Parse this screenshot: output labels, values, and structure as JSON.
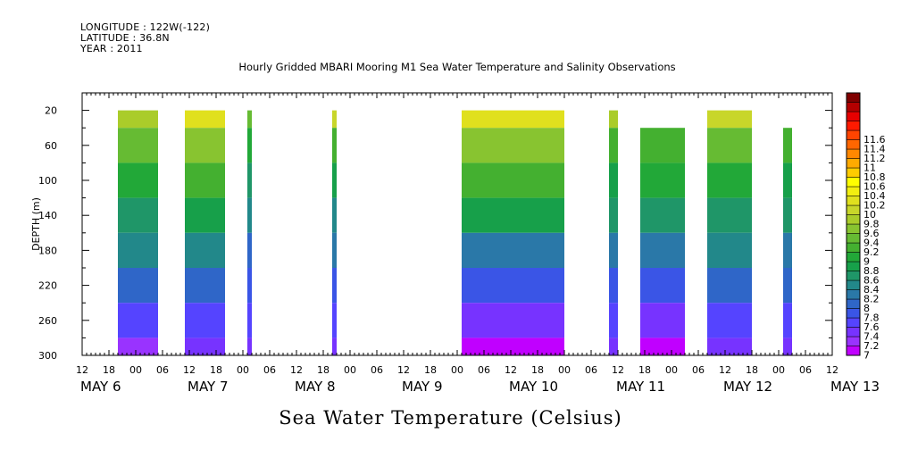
{
  "header": {
    "longitude": "LONGITUDE : 122W(-122)",
    "latitude": "LATITUDE : 36.8N",
    "year": "YEAR : 2011"
  },
  "colors": {
    "levels": [
      "#c000ff",
      "#9933ff",
      "#7733ff",
      "#5544ff",
      "#3a55e6",
      "#2f66c8",
      "#2a78a8",
      "#22888a",
      "#1f9668",
      "#17a04a",
      "#22a838",
      "#44b030",
      "#66bb33",
      "#88c430",
      "#aacc2a",
      "#c8d62a",
      "#e0e01e",
      "#f2ee10",
      "#ffff00",
      "#ffcc00",
      "#ffaa00",
      "#ff8800",
      "#ff6600",
      "#ff4400",
      "#ff1a00",
      "#e60000",
      "#b30000",
      "#800000"
    ]
  },
  "chart_data": {
    "type": "heatmap",
    "title": "Hourly Gridded MBARI Mooring M1 Sea Water Temperature and Salinity Observations",
    "xlabel": "",
    "ylabel": "DEPTH (m)",
    "bottom_title": "Sea Water Temperature (Celsius)",
    "x_unit": "hours from May 5 12:00, 2011",
    "xlim": [
      0,
      168
    ],
    "ylim": [
      300,
      0
    ],
    "y_ticks": [
      20,
      60,
      100,
      140,
      180,
      220,
      260,
      300
    ],
    "hour_tick_labels": [
      "12",
      "18",
      "00",
      "06",
      "12",
      "18",
      "00",
      "06",
      "12",
      "18",
      "00",
      "06",
      "12",
      "18",
      "00",
      "06",
      "12",
      "18",
      "00",
      "06",
      "12",
      "18",
      "00",
      "06",
      "12",
      "18",
      "00",
      "06",
      "12",
      "18",
      "00",
      "06",
      "12",
      "18",
      "00",
      "06",
      "12"
    ],
    "day_labels": [
      {
        "label": "MAY  6",
        "hour": 12
      },
      {
        "label": "MAY  7",
        "hour": 36
      },
      {
        "label": "MAY  8",
        "hour": 60
      },
      {
        "label": "MAY  9",
        "hour": 84
      },
      {
        "label": "MAY 10",
        "hour": 108
      },
      {
        "label": "MAY 11",
        "hour": 132
      },
      {
        "label": "MAY 12",
        "hour": 156
      },
      {
        "label": "MAY 13",
        "hour": 180
      }
    ],
    "colorbar": {
      "min": 7.0,
      "step": 0.2,
      "labels": [
        "7",
        "7.2",
        "7.4",
        "7.6",
        "7.8",
        "8",
        "8.2",
        "8.4",
        "8.6",
        "8.8",
        "9",
        "9.2",
        "9.4",
        "9.6",
        "9.8",
        "10",
        "10.2",
        "10.4",
        "10.6",
        "10.8",
        "11",
        "11.2",
        "11.4",
        "11.6"
      ]
    },
    "segments": [
      {
        "start": 8,
        "end": 17,
        "top": 20,
        "temps": [
          9.8,
          9.5,
          9.0,
          8.7,
          8.4,
          8.0,
          7.6,
          7.3
        ]
      },
      {
        "start": 23,
        "end": 32,
        "top": 20,
        "temps": [
          10.2,
          9.6,
          9.2,
          8.8,
          8.4,
          8.0,
          7.7,
          7.5
        ]
      },
      {
        "start": 37,
        "end": 38,
        "top": 20,
        "temps": [
          9.4,
          9.0,
          8.6,
          8.4,
          8.1,
          7.8,
          7.6,
          7.5
        ]
      },
      {
        "start": 56,
        "end": 57,
        "top": 20,
        "temps": [
          10.0,
          9.2,
          8.8,
          8.5,
          8.2,
          7.9,
          7.7,
          7.5
        ]
      },
      {
        "start": 85,
        "end": 108,
        "top": 20,
        "temps": [
          10.3,
          9.6,
          9.2,
          8.8,
          8.3,
          7.9,
          7.5,
          7.1
        ]
      },
      {
        "start": 118,
        "end": 120,
        "top": 20,
        "temps": [
          9.8,
          9.2,
          8.9,
          8.6,
          8.3,
          7.9,
          7.6,
          7.4
        ]
      },
      {
        "start": 125,
        "end": 135,
        "top": 40,
        "temps": [
          9.5,
          9.3,
          9.0,
          8.7,
          8.3,
          7.9,
          7.5,
          7.1
        ]
      },
      {
        "start": 140,
        "end": 150,
        "top": 20,
        "temps": [
          10.0,
          9.4,
          9.0,
          8.7,
          8.4,
          8.0,
          7.7,
          7.4
        ]
      },
      {
        "start": 157,
        "end": 159,
        "top": 40,
        "temps": [
          9.6,
          9.2,
          8.9,
          8.6,
          8.3,
          8.0,
          7.7,
          7.5
        ]
      }
    ],
    "segment_depths": [
      20,
      60,
      100,
      140,
      180,
      220,
      260,
      300
    ]
  }
}
